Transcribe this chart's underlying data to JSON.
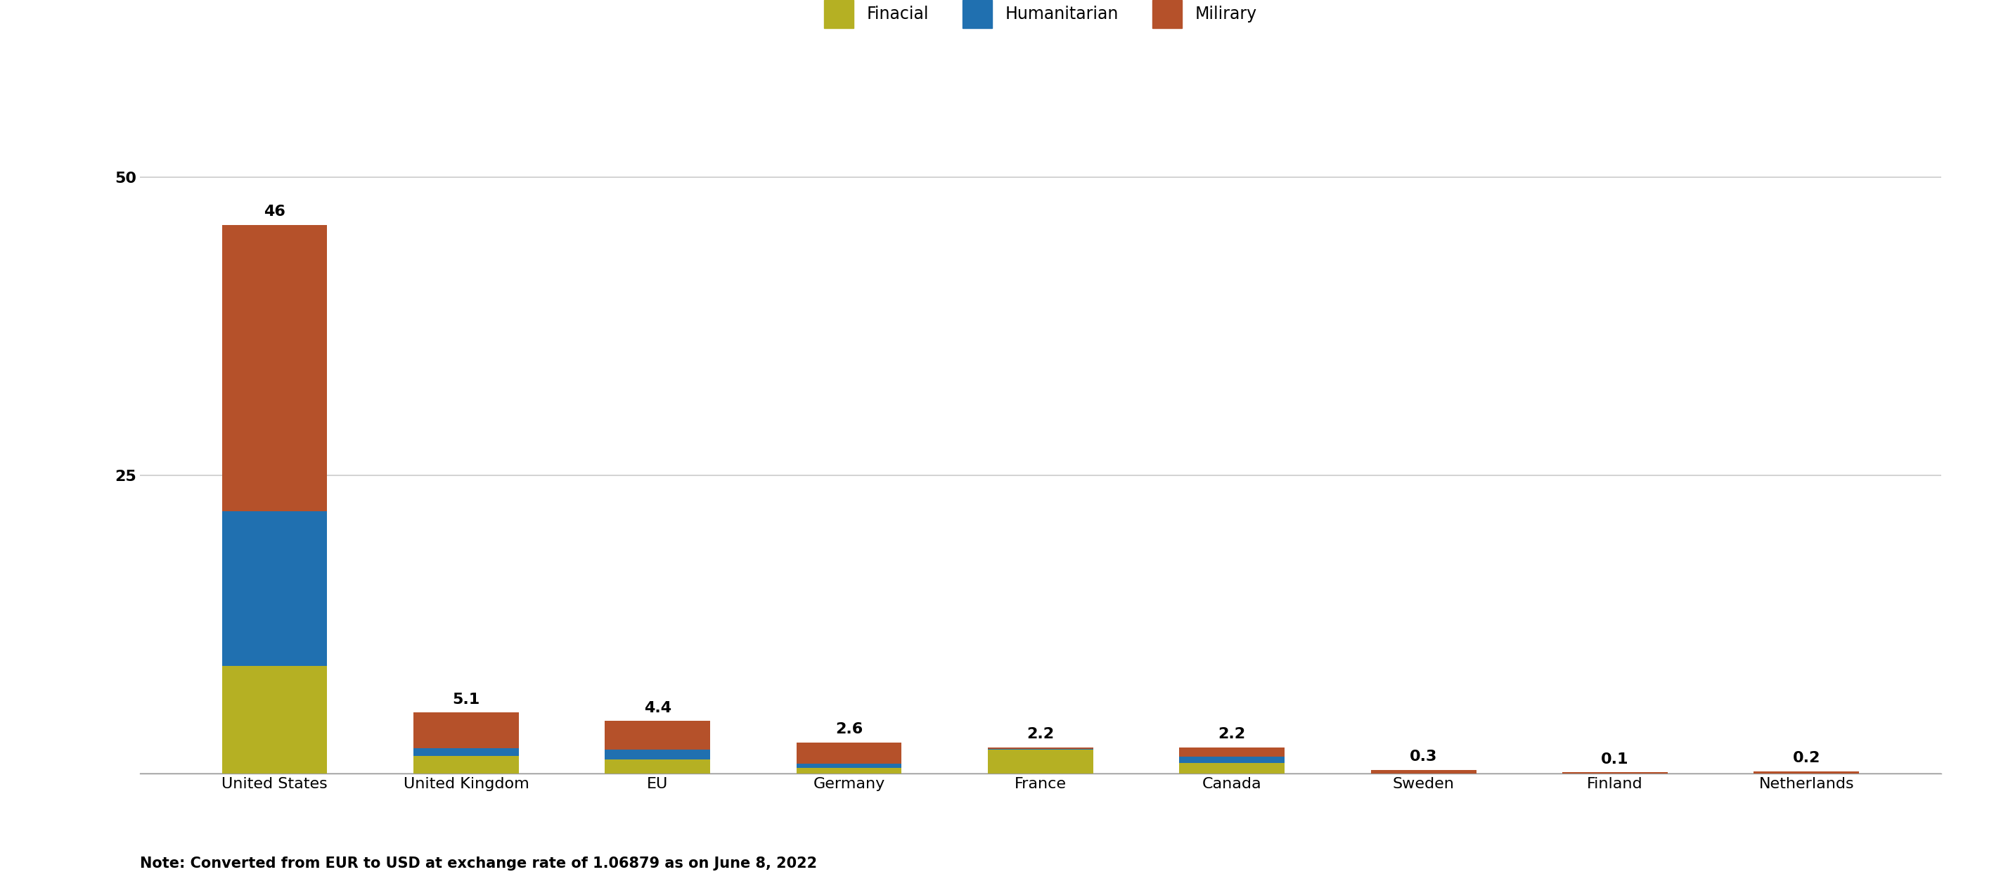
{
  "categories": [
    "United States",
    "United Kingdom",
    "EU",
    "Germany",
    "France",
    "Canada",
    "Sweden",
    "Finland",
    "Netherlands"
  ],
  "totals": [
    46,
    5.1,
    4.4,
    2.6,
    2.2,
    2.2,
    0.3,
    0.1,
    0.2
  ],
  "financial": [
    9.0,
    1.5,
    1.2,
    0.5,
    2.0,
    0.9,
    0.0,
    0.0,
    0.0
  ],
  "humanitarian": [
    13.0,
    0.6,
    0.8,
    0.3,
    0.05,
    0.5,
    0.0,
    0.0,
    0.0
  ],
  "military": [
    24.0,
    3.0,
    2.4,
    1.8,
    0.15,
    0.8,
    0.3,
    0.1,
    0.2
  ],
  "financial_color": "#b5b023",
  "humanitarian_color": "#2070b0",
  "military_color": "#b5512a",
  "background_color": "#ffffff",
  "grid_color": "#cccccc",
  "yticks": [
    0,
    25,
    50
  ],
  "ylim": [
    0,
    56
  ],
  "note": "Note: Converted from EUR to USD at exchange rate of 1.06879 as on June 8, 2022",
  "legend_labels": [
    "Finacial",
    "Humanitarian",
    "Milirary"
  ],
  "bar_width": 0.55,
  "label_fontsize": 16,
  "tick_fontsize": 16,
  "legend_fontsize": 17,
  "note_fontsize": 15
}
